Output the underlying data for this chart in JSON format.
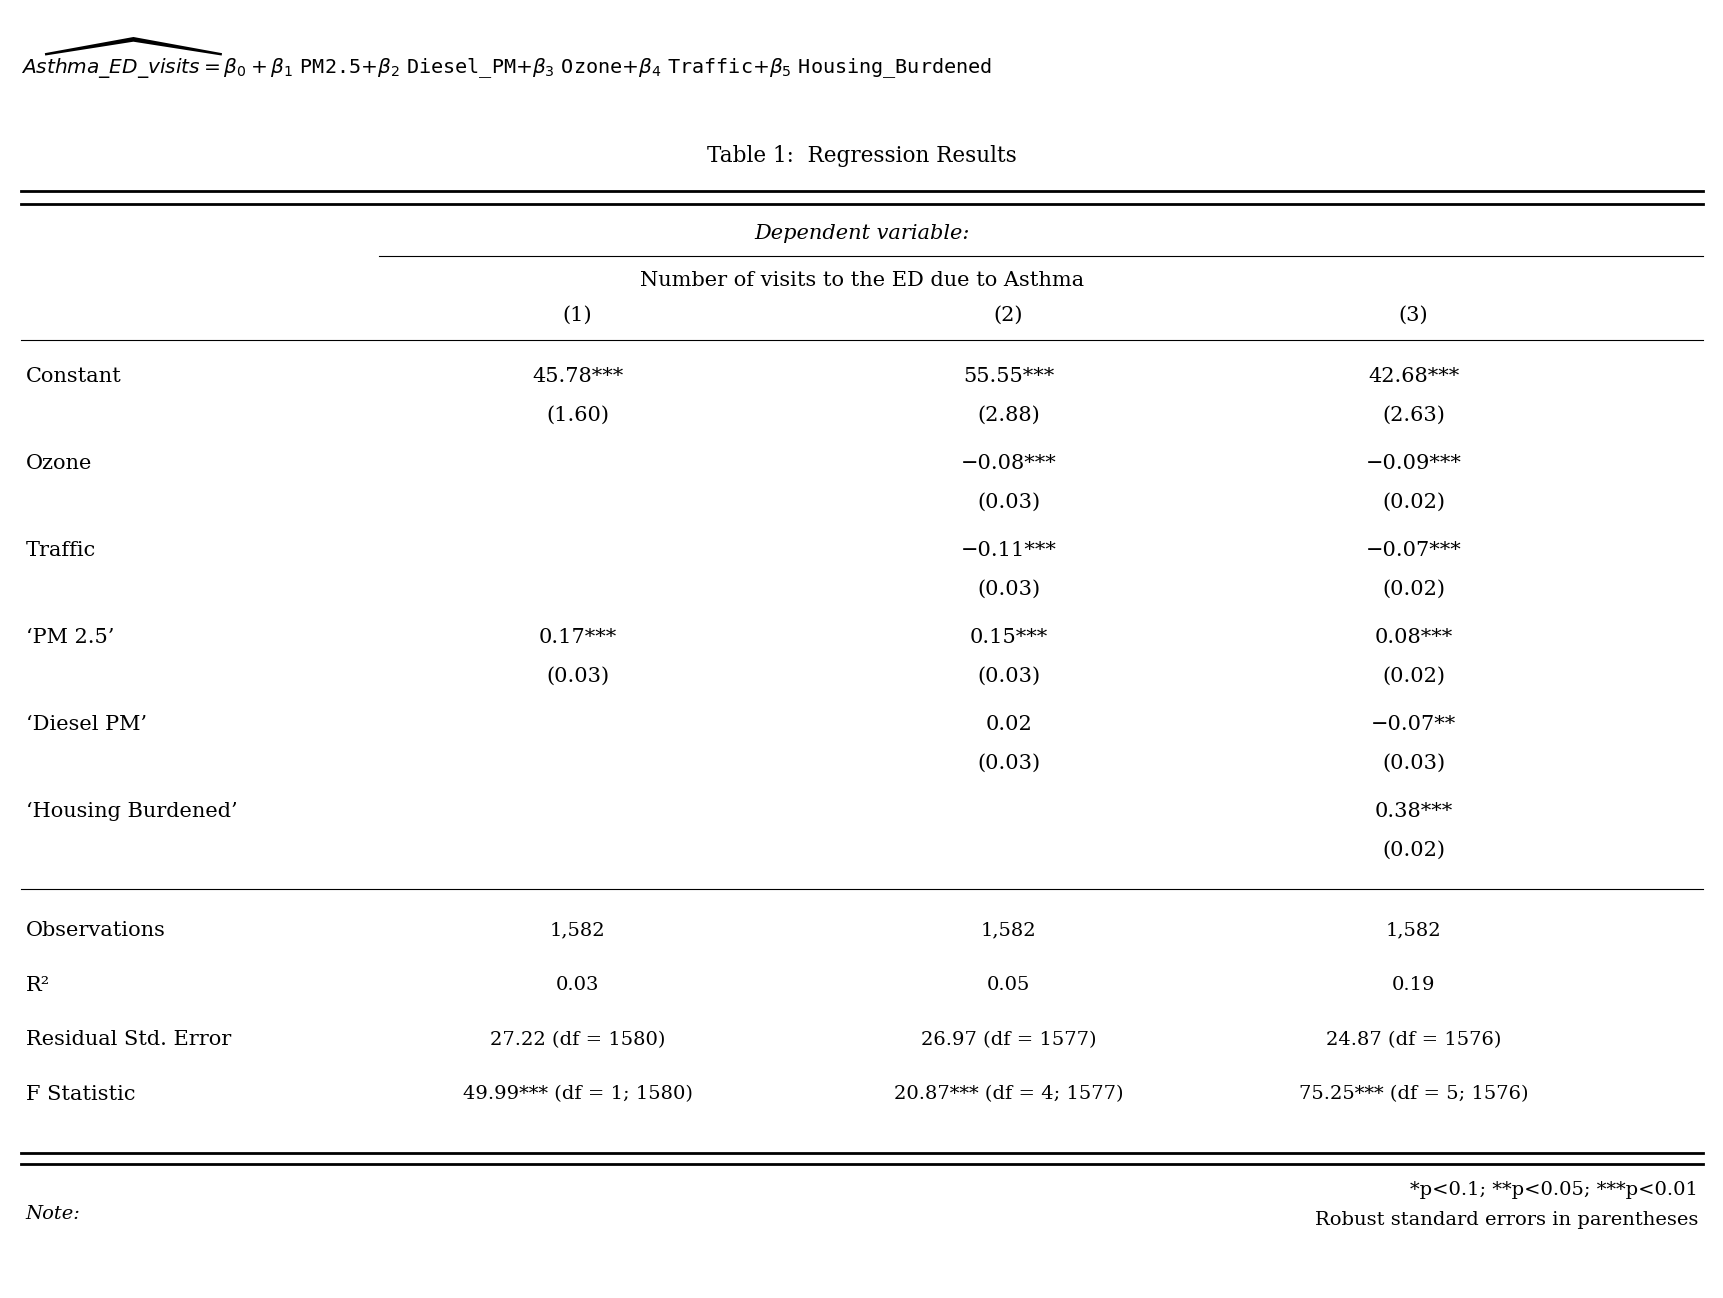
{
  "title": "Table 1:  Regression Results",
  "dep_var_label": "Dependent variable:",
  "dep_var_name": "Number of visits to the ED due to Asthma",
  "col_headers": [
    "(1)",
    "(2)",
    "(3)"
  ],
  "rows": [
    {
      "label": "Constant",
      "vals": [
        "45.78***",
        "55.55***",
        "42.68***"
      ],
      "se": [
        "(1.60)",
        "(2.88)",
        "(2.63)"
      ]
    },
    {
      "label": "Ozone",
      "vals": [
        "",
        "−0.08***",
        "−0.09***"
      ],
      "se": [
        "",
        "(0.03)",
        "(0.02)"
      ]
    },
    {
      "label": "Traffic",
      "vals": [
        "",
        "−0.11***",
        "−0.07***"
      ],
      "se": [
        "",
        "(0.03)",
        "(0.02)"
      ]
    },
    {
      "label": "‘PM 2.5’",
      "vals": [
        "0.17***",
        "0.15***",
        "0.08***"
      ],
      "se": [
        "(0.03)",
        "(0.03)",
        "(0.02)"
      ]
    },
    {
      "label": "‘Diesel PM’",
      "vals": [
        "",
        "0.02",
        "−0.07**"
      ],
      "se": [
        "",
        "(0.03)",
        "(0.03)"
      ]
    },
    {
      "label": "‘Housing Burdened’",
      "vals": [
        "",
        "",
        "0.38***"
      ],
      "se": [
        "",
        "",
        "(0.02)"
      ]
    }
  ],
  "stats": [
    {
      "label": "Observations",
      "vals": [
        "1,582",
        "1,582",
        "1,582"
      ]
    },
    {
      "label": "R²",
      "vals": [
        "0.03",
        "0.05",
        "0.19"
      ]
    },
    {
      "label": "Residual Std. Error",
      "vals": [
        "27.22 (df = 1580)",
        "26.97 (df = 1577)",
        "24.87 (df = 1576)"
      ]
    },
    {
      "label": "F Statistic",
      "vals": [
        "49.99*** (df = 1; 1580)",
        "20.87*** (df = 4; 1577)",
        "75.25*** (df = 5; 1576)"
      ]
    }
  ],
  "note_left": "Note:",
  "note_right1": "*p<0.1; **p<0.05; ***p<0.01",
  "note_right2": "Robust standard errors in parentheses",
  "bg_color": "#ffffff",
  "text_color": "#000000",
  "font_size_table": 15,
  "font_size_title": 15.5,
  "font_size_formula": 14.5
}
